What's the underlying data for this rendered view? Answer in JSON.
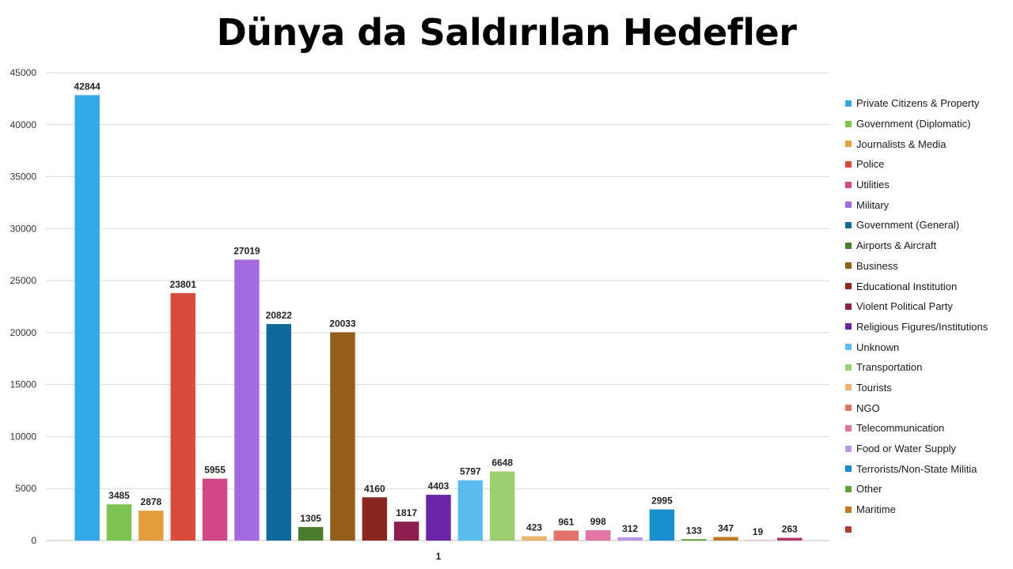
{
  "chart_data": {
    "type": "bar",
    "title": "Dünya da Saldırılan Hedefler",
    "categories": [
      "1"
    ],
    "ylim": [
      0,
      45000
    ],
    "yticks": [
      0,
      5000,
      10000,
      15000,
      20000,
      25000,
      30000,
      35000,
      40000,
      45000
    ],
    "grid": true,
    "legend_position": "right",
    "series": [
      {
        "name": "Private Citizens & Property",
        "value": 42844,
        "color": "#33a9e9"
      },
      {
        "name": "Government (Diplomatic)",
        "value": 3485,
        "color": "#7ec24f"
      },
      {
        "name": "Journalists & Media",
        "value": 2878,
        "color": "#e39e3d"
      },
      {
        "name": "Police",
        "value": 23801,
        "color": "#d94b3c"
      },
      {
        "name": "Utilities",
        "value": 5955,
        "color": "#d34688"
      },
      {
        "name": "Military",
        "value": 27019,
        "color": "#a46ae0"
      },
      {
        "name": "Government (General)",
        "value": 20822,
        "color": "#0f6a9c"
      },
      {
        "name": "Airports & Aircraft",
        "value": 1305,
        "color": "#4a7d2d"
      },
      {
        "name": "Business",
        "value": 20033,
        "color": "#945d1a"
      },
      {
        "name": "Educational Institution",
        "value": 4160,
        "color": "#8a2620"
      },
      {
        "name": "Violent Political Party",
        "value": 1817,
        "color": "#8c1f4f"
      },
      {
        "name": "Religious Figures/Institutions",
        "value": 4403,
        "color": "#6b26a8"
      },
      {
        "name": "Unknown",
        "value": 5797,
        "color": "#5cbcee"
      },
      {
        "name": "Transportation",
        "value": 6648,
        "color": "#9ccf72"
      },
      {
        "name": "Tourists",
        "value": 423,
        "color": "#e9b470"
      },
      {
        "name": "NGO",
        "value": 961,
        "color": "#e3736a"
      },
      {
        "name": "Telecommunication",
        "value": 998,
        "color": "#e175a5"
      },
      {
        "name": "Food or Water Supply",
        "value": 312,
        "color": "#b895e8"
      },
      {
        "name": "Terrorists/Non-State Militia",
        "value": 2995,
        "color": "#1a8fd0"
      },
      {
        "name": "Other",
        "value": 133,
        "color": "#5f9e3a"
      },
      {
        "name": "Maritime",
        "value": 347,
        "color": "#c07c22"
      },
      {
        "name": "",
        "value": 19,
        "color": "#b43a33"
      },
      {
        "name": "",
        "value": 263,
        "color": "#b0356b"
      }
    ]
  }
}
